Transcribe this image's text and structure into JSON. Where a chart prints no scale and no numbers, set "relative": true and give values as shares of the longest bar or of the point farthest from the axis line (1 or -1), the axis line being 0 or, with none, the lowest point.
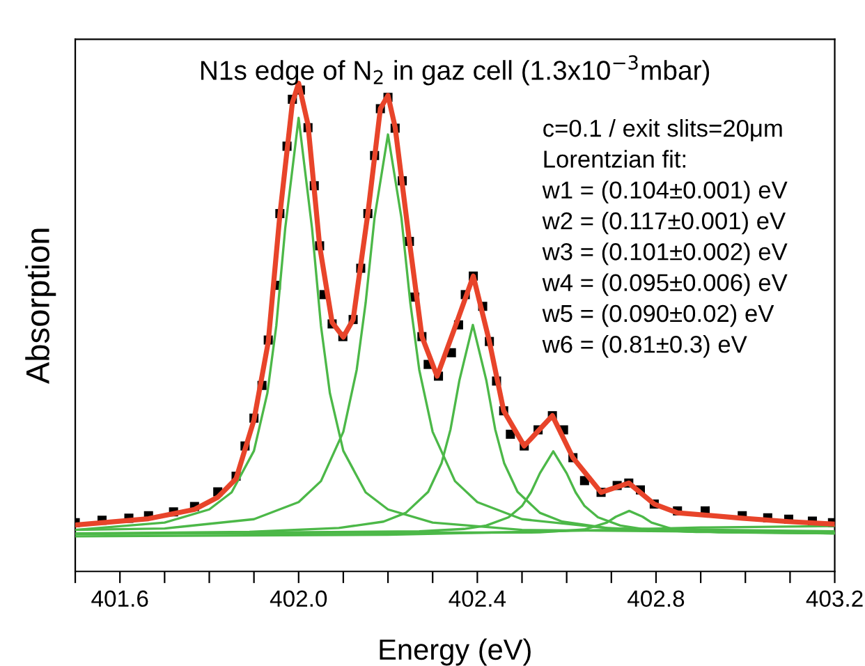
{
  "chart_data": {
    "type": "line",
    "title": "N1s edge of N$_{2}$ in gaz cell (1.3x10$^{−3}$mbar)",
    "xlabel": "Energy (eV)",
    "ylabel": "Absorption",
    "relative": true,
    "xlim": [
      401.5,
      403.2
    ],
    "xticks": [
      {
        "value": 401.5,
        "label": null
      },
      {
        "value": 401.6,
        "label": "401.6"
      },
      {
        "value": 401.7,
        "label": null
      },
      {
        "value": 401.8,
        "label": null
      },
      {
        "value": 401.9,
        "label": null
      },
      {
        "value": 402.0,
        "label": "402.0"
      },
      {
        "value": 402.1,
        "label": null
      },
      {
        "value": 402.2,
        "label": null
      },
      {
        "value": 402.3,
        "label": null
      },
      {
        "value": 402.4,
        "label": "402.4"
      },
      {
        "value": 402.5,
        "label": null
      },
      {
        "value": 402.6,
        "label": null
      },
      {
        "value": 402.7,
        "label": null
      },
      {
        "value": 402.8,
        "label": "402.8"
      },
      {
        "value": 402.9,
        "label": null
      },
      {
        "value": 403.0,
        "label": null
      },
      {
        "value": 403.1,
        "label": null
      },
      {
        "value": 403.2,
        "label": "403.2"
      }
    ],
    "tick_labels": "x",
    "grid": false,
    "legend": false,
    "annotations": [
      "c=0.1 / exit slits=20μm",
      "Lorentzian fit:",
      "w1 = (0.104±0.001) eV",
      "w2 = (0.117±0.001) eV",
      "w3 = (0.101±0.002) eV",
      "w4 = (0.095±0.006) eV",
      "w5 = (0.090±0.02) eV",
      "w6 = (0.81±0.3) eV"
    ],
    "series": [
      {
        "color": "#4cb848",
        "x": [
          401.5,
          401.7,
          401.8,
          401.85,
          401.9,
          401.93,
          401.95,
          401.97,
          402.0,
          402.03,
          402.05,
          402.07,
          402.1,
          402.15,
          402.2,
          402.3,
          402.5,
          403.2
        ],
        "values": [
          0.085,
          0.1,
          0.127,
          0.162,
          0.247,
          0.365,
          0.503,
          0.703,
          0.929,
          0.703,
          0.503,
          0.365,
          0.247,
          0.162,
          0.127,
          0.1,
          0.085,
          0.079
        ]
      },
      {
        "color": "#4cb848",
        "x": [
          401.5,
          401.7,
          401.9,
          402.0,
          402.05,
          402.1,
          402.13,
          402.15,
          402.17,
          402.2,
          402.23,
          402.25,
          402.27,
          402.3,
          402.35,
          402.4,
          402.5,
          402.7,
          403.2
        ],
        "values": [
          0.085,
          0.088,
          0.107,
          0.142,
          0.185,
          0.286,
          0.413,
          0.55,
          0.725,
          0.895,
          0.725,
          0.55,
          0.413,
          0.286,
          0.185,
          0.142,
          0.107,
          0.088,
          0.082
        ]
      },
      {
        "color": "#4cb848",
        "x": [
          401.5,
          401.89,
          402.09,
          402.19,
          402.24,
          402.29,
          402.32,
          402.34,
          402.36,
          402.39,
          402.42,
          402.44,
          402.46,
          402.49,
          402.54,
          402.59,
          402.69,
          402.89,
          403.2
        ],
        "values": [
          0.078,
          0.081,
          0.089,
          0.102,
          0.12,
          0.163,
          0.222,
          0.291,
          0.392,
          0.505,
          0.392,
          0.291,
          0.222,
          0.163,
          0.12,
          0.102,
          0.089,
          0.081,
          0.078
        ]
      },
      {
        "color": "#4cb848",
        "x": [
          401.5,
          402.27,
          402.37,
          402.42,
          402.47,
          402.5,
          402.52,
          402.54,
          402.57,
          402.6,
          402.62,
          402.64,
          402.67,
          402.72,
          402.77,
          402.87,
          403.2
        ],
        "values": [
          0.077,
          0.082,
          0.087,
          0.094,
          0.111,
          0.134,
          0.162,
          0.201,
          0.246,
          0.201,
          0.162,
          0.134,
          0.111,
          0.094,
          0.087,
          0.082,
          0.078
        ]
      },
      {
        "color": "#4cb848",
        "x": [
          401.5,
          402.54,
          402.64,
          402.69,
          402.71,
          402.74,
          402.77,
          402.79,
          402.84,
          402.94,
          403.2
        ],
        "values": [
          0.077,
          0.08,
          0.086,
          0.1,
          0.112,
          0.124,
          0.112,
          0.1,
          0.086,
          0.08,
          0.078
        ]
      },
      {
        "color": "#4cb848",
        "x": [
          401.5,
          402.2,
          402.6,
          402.9,
          403.2
        ],
        "values": [
          0.072,
          0.075,
          0.083,
          0.09,
          0.093
        ]
      },
      {
        "type": "scatter",
        "color": "#000000",
        "marker": "square",
        "x": [
          401.5,
          401.56,
          401.62,
          401.664,
          401.72,
          401.767,
          401.819,
          401.86,
          401.88,
          401.9,
          401.918,
          401.932,
          401.95,
          401.958,
          401.974,
          401.986,
          402.004,
          402.021,
          402.035,
          402.047,
          402.057,
          402.075,
          402.099,
          402.122,
          402.139,
          402.155,
          402.17,
          402.183,
          402.2,
          402.216,
          402.232,
          402.248,
          402.26,
          402.276,
          402.29,
          402.313,
          402.342,
          402.358,
          402.373,
          402.391,
          402.412,
          402.427,
          402.443,
          402.459,
          402.474,
          402.505,
          402.536,
          402.568,
          402.593,
          402.614,
          402.64,
          402.677,
          402.713,
          402.739,
          402.765,
          402.796,
          402.848,
          402.91,
          402.993,
          403.05,
          403.097,
          403.15,
          403.195
        ],
        "values": [
          0.1,
          0.105,
          0.109,
          0.114,
          0.122,
          0.133,
          0.163,
          0.195,
          0.257,
          0.314,
          0.381,
          0.474,
          0.586,
          0.733,
          0.871,
          0.967,
          0.986,
          0.909,
          0.79,
          0.667,
          0.567,
          0.507,
          0.481,
          0.516,
          0.621,
          0.733,
          0.852,
          0.948,
          0.971,
          0.908,
          0.8,
          0.676,
          0.562,
          0.481,
          0.424,
          0.4,
          0.448,
          0.505,
          0.567,
          0.605,
          0.543,
          0.471,
          0.39,
          0.329,
          0.281,
          0.257,
          0.29,
          0.319,
          0.29,
          0.233,
          0.186,
          0.162,
          0.176,
          0.181,
          0.167,
          0.138,
          0.124,
          0.124,
          0.114,
          0.11,
          0.107,
          0.103,
          0.1
        ]
      },
      {
        "color": "#e8442a",
        "x": [
          401.5,
          401.664,
          401.767,
          401.819,
          401.86,
          401.9,
          401.932,
          401.958,
          401.986,
          402.0,
          402.021,
          402.047,
          402.075,
          402.1,
          402.122,
          402.155,
          402.183,
          402.2,
          402.216,
          402.248,
          402.276,
          402.31,
          402.35,
          402.391,
          402.427,
          402.459,
          402.505,
          402.568,
          402.614,
          402.677,
          402.739,
          402.796,
          402.848,
          402.993,
          403.097,
          403.2
        ],
        "values": [
          0.095,
          0.108,
          0.127,
          0.152,
          0.19,
          0.31,
          0.47,
          0.73,
          0.96,
          1.0,
          0.915,
          0.667,
          0.51,
          0.48,
          0.516,
          0.733,
          0.948,
          0.975,
          0.91,
          0.676,
          0.481,
          0.4,
          0.5,
          0.605,
          0.471,
          0.329,
          0.257,
          0.319,
          0.233,
          0.162,
          0.181,
          0.138,
          0.12,
          0.109,
          0.102,
          0.097
        ]
      }
    ]
  }
}
